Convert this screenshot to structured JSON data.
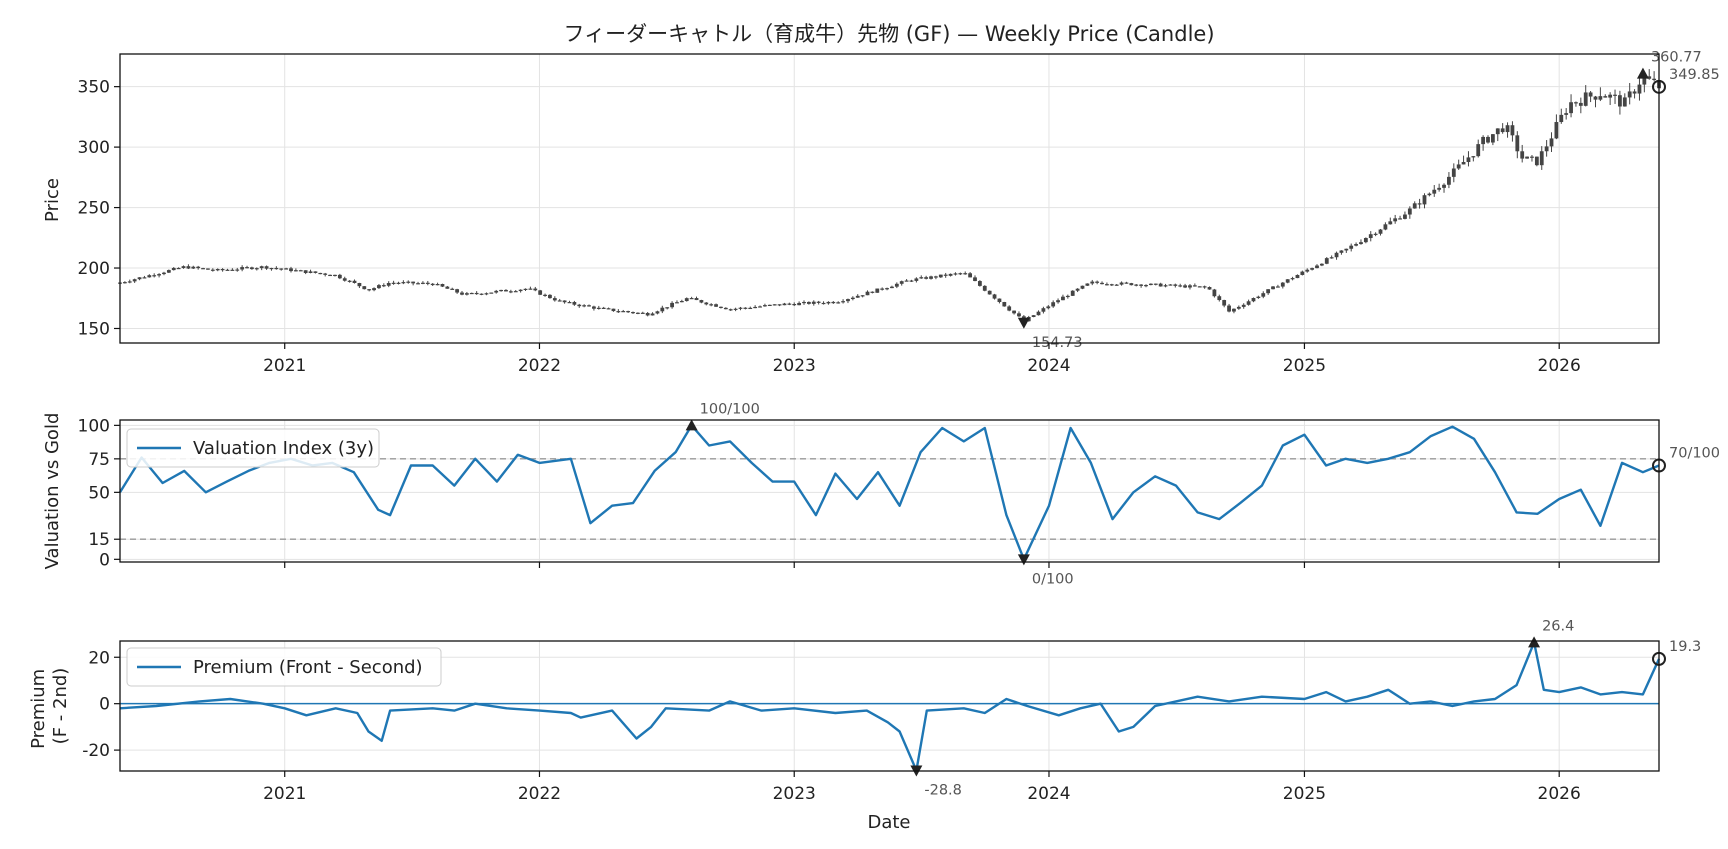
{
  "chart_data": [
    {
      "type": "candlestick",
      "title": "フィーダーキャトル（育成牛）先物 (GF) — Weekly Price (Candle)",
      "ylabel": "Price",
      "ylim": [
        138,
        377
      ],
      "yticks": [
        150,
        200,
        250,
        300,
        350
      ],
      "x_range": [
        "2020-05-10",
        "2026-05-24"
      ],
      "xticks": [
        "2021",
        "2022",
        "2023",
        "2024",
        "2025",
        "2026"
      ],
      "grid": true,
      "candle_color": "#444444",
      "price_anchors": [
        [
          "2020-05-10",
          188
        ],
        [
          "2020-08-10",
          201
        ],
        [
          "2020-09-25",
          198
        ],
        [
          "2020-12-01",
          201
        ],
        [
          "2021-03-15",
          194
        ],
        [
          "2021-05-01",
          182
        ],
        [
          "2021-06-01",
          188
        ],
        [
          "2021-08-01",
          187
        ],
        [
          "2021-09-15",
          178
        ],
        [
          "2021-12-15",
          183
        ],
        [
          "2022-02-01",
          172
        ],
        [
          "2022-04-01",
          166
        ],
        [
          "2022-06-05",
          162
        ],
        [
          "2022-08-01",
          175
        ],
        [
          "2022-10-01",
          166
        ],
        [
          "2022-12-15",
          170
        ],
        [
          "2023-03-01",
          172
        ],
        [
          "2023-05-01",
          182
        ],
        [
          "2023-06-15",
          190
        ],
        [
          "2023-09-01",
          196
        ],
        [
          "2023-11-26",
          156
        ],
        [
          "2024-01-15",
          174
        ],
        [
          "2024-03-01",
          188
        ],
        [
          "2024-06-01",
          186
        ],
        [
          "2024-08-15",
          184
        ],
        [
          "2024-09-15",
          164
        ],
        [
          "2024-12-01",
          188
        ],
        [
          "2025-03-01",
          215
        ],
        [
          "2025-06-01",
          248
        ],
        [
          "2025-08-01",
          278
        ],
        [
          "2025-09-15",
          305
        ],
        [
          "2025-10-15",
          318
        ],
        [
          "2025-11-10",
          290
        ],
        [
          "2025-12-01",
          288
        ],
        [
          "2026-01-15",
          336
        ],
        [
          "2026-03-01",
          345
        ],
        [
          "2026-04-05",
          336
        ],
        [
          "2026-04-30",
          358
        ],
        [
          "2026-05-24",
          350
        ]
      ],
      "annotations": [
        {
          "label": "360.77",
          "x": "2026-05-01",
          "y": 360.77,
          "marker": "triangle-up"
        },
        {
          "label": "154.73",
          "x": "2023-11-26",
          "y": 154.73,
          "marker": "triangle-down"
        },
        {
          "label": "349.85",
          "x": "2026-05-24",
          "y": 349.85,
          "marker": "circle"
        }
      ]
    },
    {
      "type": "line",
      "ylabel": "Valuation vs Gold",
      "ylim": [
        -2,
        104
      ],
      "yticks": [
        0,
        15,
        50,
        75,
        100
      ],
      "reference_lines": [
        75,
        15
      ],
      "series": [
        {
          "name": "Valuation Index (3y)",
          "color": "#1f77b4",
          "points": [
            [
              "2020-05-10",
              50
            ],
            [
              "2020-06-10",
              76
            ],
            [
              "2020-07-10",
              57
            ],
            [
              "2020-08-10",
              66
            ],
            [
              "2020-09-10",
              50
            ],
            [
              "2020-10-10",
              58
            ],
            [
              "2020-11-10",
              66
            ],
            [
              "2020-12-10",
              72
            ],
            [
              "2021-01-10",
              75
            ],
            [
              "2021-02-10",
              70
            ],
            [
              "2021-03-10",
              72
            ],
            [
              "2021-04-10",
              65
            ],
            [
              "2021-05-15",
              37
            ],
            [
              "2021-06-01",
              33
            ],
            [
              "2021-07-01",
              70
            ],
            [
              "2021-08-01",
              70
            ],
            [
              "2021-09-01",
              55
            ],
            [
              "2021-10-01",
              75
            ],
            [
              "2021-11-01",
              58
            ],
            [
              "2021-12-01",
              78
            ],
            [
              "2022-01-01",
              72
            ],
            [
              "2022-02-15",
              75
            ],
            [
              "2022-03-15",
              27
            ],
            [
              "2022-04-15",
              40
            ],
            [
              "2022-05-15",
              42
            ],
            [
              "2022-06-15",
              66
            ],
            [
              "2022-07-15",
              80
            ],
            [
              "2022-08-07",
              100
            ],
            [
              "2022-09-01",
              85
            ],
            [
              "2022-10-01",
              88
            ],
            [
              "2022-11-01",
              72
            ],
            [
              "2022-12-01",
              58
            ],
            [
              "2023-01-01",
              58
            ],
            [
              "2023-02-01",
              33
            ],
            [
              "2023-03-01",
              64
            ],
            [
              "2023-04-01",
              45
            ],
            [
              "2023-05-01",
              65
            ],
            [
              "2023-06-01",
              40
            ],
            [
              "2023-07-01",
              80
            ],
            [
              "2023-08-01",
              98
            ],
            [
              "2023-09-01",
              88
            ],
            [
              "2023-10-01",
              98
            ],
            [
              "2023-11-01",
              33
            ],
            [
              "2023-11-26",
              0
            ],
            [
              "2024-01-01",
              40
            ],
            [
              "2024-02-01",
              98
            ],
            [
              "2024-03-01",
              72
            ],
            [
              "2024-04-01",
              30
            ],
            [
              "2024-05-01",
              50
            ],
            [
              "2024-06-01",
              62
            ],
            [
              "2024-07-01",
              55
            ],
            [
              "2024-08-01",
              35
            ],
            [
              "2024-09-01",
              30
            ],
            [
              "2024-10-01",
              42
            ],
            [
              "2024-11-01",
              55
            ],
            [
              "2024-12-01",
              85
            ],
            [
              "2025-01-01",
              93
            ],
            [
              "2025-02-01",
              70
            ],
            [
              "2025-03-01",
              75
            ],
            [
              "2025-04-01",
              72
            ],
            [
              "2025-05-01",
              75
            ],
            [
              "2025-06-01",
              80
            ],
            [
              "2025-07-01",
              92
            ],
            [
              "2025-08-01",
              99
            ],
            [
              "2025-09-01",
              90
            ],
            [
              "2025-10-01",
              65
            ],
            [
              "2025-11-01",
              35
            ],
            [
              "2025-12-01",
              34
            ],
            [
              "2026-01-01",
              45
            ],
            [
              "2026-02-01",
              52
            ],
            [
              "2026-03-01",
              25
            ],
            [
              "2026-04-01",
              72
            ],
            [
              "2026-05-01",
              65
            ],
            [
              "2026-05-24",
              70
            ]
          ]
        }
      ],
      "annotations": [
        {
          "label": "100/100",
          "x": "2022-08-07",
          "y": 100,
          "marker": "triangle-up"
        },
        {
          "label": "0/100",
          "x": "2023-11-26",
          "y": 0,
          "marker": "triangle-down"
        },
        {
          "label": "70/100",
          "x": "2026-05-24",
          "y": 70,
          "marker": "circle"
        }
      ],
      "legend": "top-left"
    },
    {
      "type": "line",
      "xlabel": "Date",
      "ylabel": "Premium\n(F - 2nd)",
      "ylim": [
        -29,
        27
      ],
      "yticks": [
        -20,
        0,
        20
      ],
      "xticks": [
        "2021",
        "2022",
        "2023",
        "2024",
        "2025",
        "2026"
      ],
      "reference_lines": [
        0
      ],
      "series": [
        {
          "name": "Premium (Front - Second)",
          "color": "#1f77b4",
          "points": [
            [
              "2020-05-10",
              -2
            ],
            [
              "2020-07-01",
              -1
            ],
            [
              "2020-09-01",
              1
            ],
            [
              "2020-10-15",
              2
            ],
            [
              "2020-12-01",
              0
            ],
            [
              "2021-01-01",
              -2
            ],
            [
              "2021-02-01",
              -5
            ],
            [
              "2021-03-15",
              -2
            ],
            [
              "2021-04-15",
              -4
            ],
            [
              "2021-05-01",
              -12
            ],
            [
              "2021-05-20",
              -16
            ],
            [
              "2021-06-01",
              -3
            ],
            [
              "2021-08-01",
              -2
            ],
            [
              "2021-09-01",
              -3
            ],
            [
              "2021-10-01",
              0
            ],
            [
              "2021-11-15",
              -2
            ],
            [
              "2022-01-01",
              -3
            ],
            [
              "2022-02-15",
              -4
            ],
            [
              "2022-03-01",
              -6
            ],
            [
              "2022-04-15",
              -3
            ],
            [
              "2022-05-20",
              -15
            ],
            [
              "2022-06-10",
              -10
            ],
            [
              "2022-07-01",
              -2
            ],
            [
              "2022-09-01",
              -3
            ],
            [
              "2022-10-01",
              1
            ],
            [
              "2022-11-15",
              -3
            ],
            [
              "2023-01-01",
              -2
            ],
            [
              "2023-03-01",
              -4
            ],
            [
              "2023-04-15",
              -3
            ],
            [
              "2023-05-15",
              -8
            ],
            [
              "2023-06-01",
              -12
            ],
            [
              "2023-06-25",
              -28.8
            ],
            [
              "2023-07-10",
              -3
            ],
            [
              "2023-09-01",
              -2
            ],
            [
              "2023-10-01",
              -4
            ],
            [
              "2023-11-01",
              2
            ],
            [
              "2023-12-01",
              -1
            ],
            [
              "2024-01-15",
              -5
            ],
            [
              "2024-02-15",
              -2
            ],
            [
              "2024-03-15",
              0
            ],
            [
              "2024-04-10",
              -12
            ],
            [
              "2024-05-01",
              -10
            ],
            [
              "2024-06-01",
              -1
            ],
            [
              "2024-07-01",
              1
            ],
            [
              "2024-08-01",
              3
            ],
            [
              "2024-09-15",
              1
            ],
            [
              "2024-11-01",
              3
            ],
            [
              "2025-01-01",
              2
            ],
            [
              "2025-02-01",
              5
            ],
            [
              "2025-03-01",
              1
            ],
            [
              "2025-04-01",
              3
            ],
            [
              "2025-05-01",
              6
            ],
            [
              "2025-06-01",
              0
            ],
            [
              "2025-07-01",
              1
            ],
            [
              "2025-08-01",
              -1
            ],
            [
              "2025-09-01",
              1
            ],
            [
              "2025-10-01",
              2
            ],
            [
              "2025-11-01",
              8
            ],
            [
              "2025-11-26",
              26.4
            ],
            [
              "2025-12-10",
              6
            ],
            [
              "2026-01-01",
              5
            ],
            [
              "2026-02-01",
              7
            ],
            [
              "2026-03-01",
              4
            ],
            [
              "2026-04-01",
              5
            ],
            [
              "2026-05-01",
              4
            ],
            [
              "2026-05-24",
              19.3
            ]
          ]
        }
      ],
      "annotations": [
        {
          "label": "26.4",
          "x": "2025-11-26",
          "y": 26.4,
          "marker": "triangle-up"
        },
        {
          "label": "-28.8",
          "x": "2023-06-25",
          "y": -28.8,
          "marker": "triangle-down"
        },
        {
          "label": "19.3",
          "x": "2026-05-24",
          "y": 19.3,
          "marker": "circle"
        }
      ],
      "legend": "top-left"
    }
  ]
}
